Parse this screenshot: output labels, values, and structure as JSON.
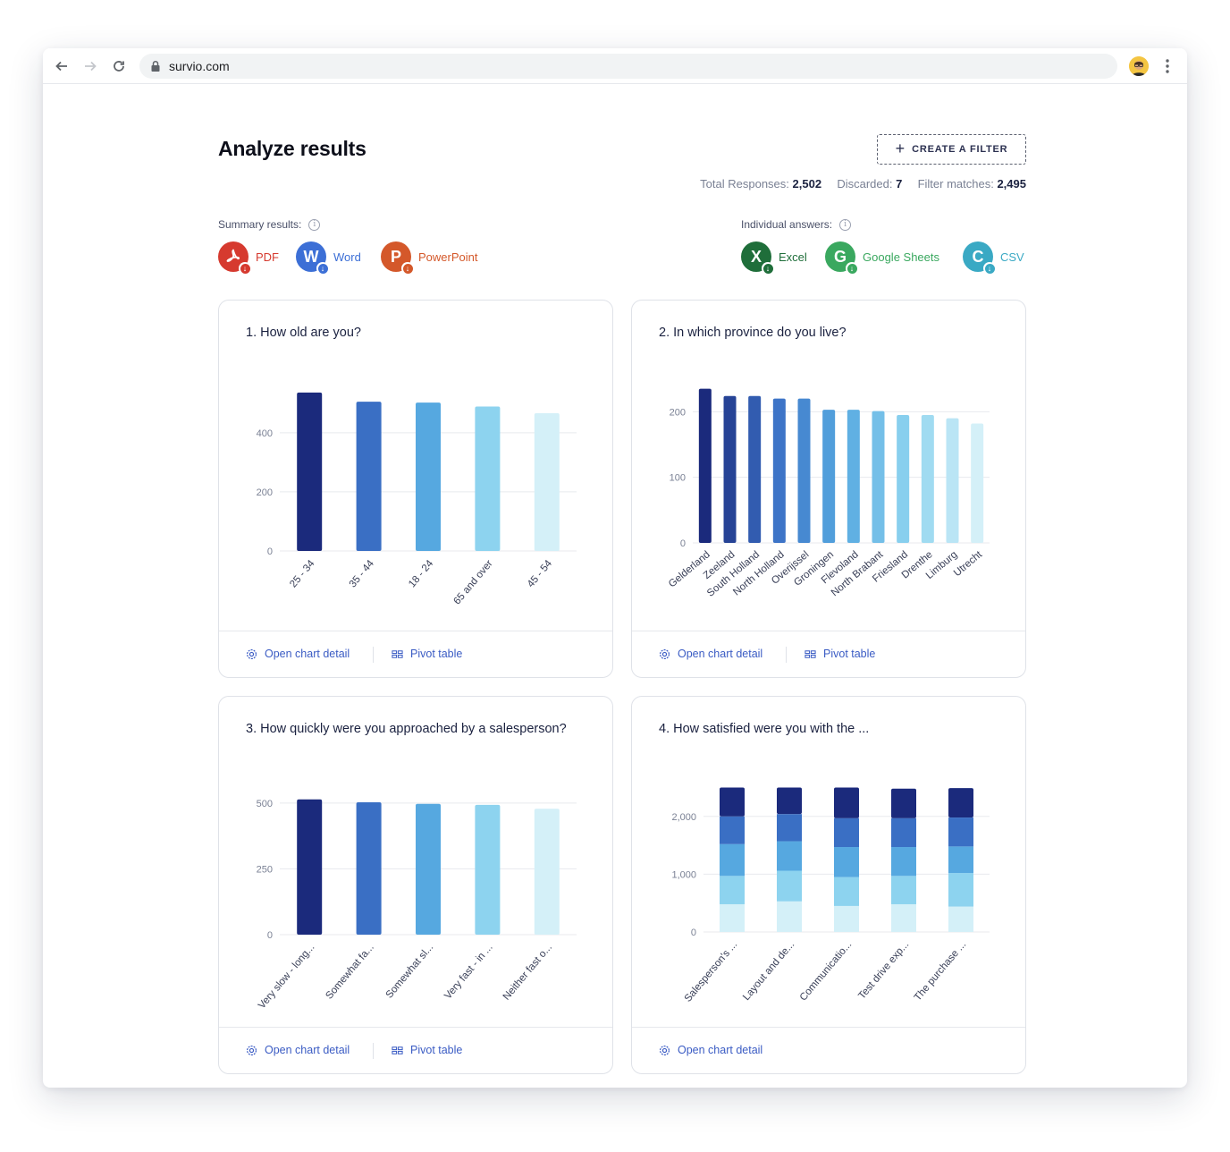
{
  "browser": {
    "url": "survio.com"
  },
  "page": {
    "title": "Analyze results",
    "filter_button": "CREATE A FILTER",
    "stats": {
      "total_label": "Total Responses:",
      "total_value": "2,502",
      "discarded_label": "Discarded:",
      "discarded_value": "7",
      "matches_label": "Filter matches:",
      "matches_value": "2,495"
    },
    "summary": {
      "label": "Summary results:",
      "items": [
        {
          "label": "PDF",
          "color": "#d63a2f",
          "glyph": "pdf-icon"
        },
        {
          "label": "Word",
          "color": "#3c6fd6",
          "glyph": "W"
        },
        {
          "label": "PowerPoint",
          "color": "#d4582a",
          "glyph": "P"
        }
      ]
    },
    "individual": {
      "label": "Individual answers:",
      "items": [
        {
          "label": "Excel",
          "color": "#1f6e3a",
          "glyph": "X"
        },
        {
          "label": "Google Sheets",
          "color": "#3aa85f",
          "glyph": "G"
        },
        {
          "label": "CSV",
          "color": "#3aa9c4",
          "glyph": "C"
        }
      ]
    },
    "footer": {
      "open_chart_detail": "Open chart detail",
      "pivot_table": "Pivot table"
    }
  },
  "palette": [
    "#1b2a7c",
    "#3a6fc4",
    "#56a8e0",
    "#8dd3ef",
    "#d4f0f8"
  ],
  "chart_data": [
    {
      "type": "bar",
      "title": "1. How old are you?",
      "categories": [
        "25 - 34",
        "35 - 44",
        "18 - 24",
        "65 and over",
        "45 - 54"
      ],
      "values": [
        536,
        505,
        502,
        489,
        466
      ],
      "yticks": [
        0,
        200,
        400
      ],
      "ylim": [
        0,
        560
      ],
      "grid": true,
      "xlabel": "",
      "ylabel": ""
    },
    {
      "type": "bar",
      "title": "2. In which province do you live?",
      "categories": [
        "Gelderland",
        "Zeeland",
        "South Holland",
        "North Holland",
        "Overijssel",
        "Groningen",
        "Flevoland",
        "North Brabant",
        "Friesland",
        "Drenthe",
        "Limburg",
        "Utrecht"
      ],
      "values": [
        235,
        224,
        224,
        220,
        220,
        203,
        203,
        201,
        195,
        195,
        190,
        182
      ],
      "yticks": [
        0,
        100,
        200
      ],
      "ylim": [
        0,
        240
      ],
      "grid": true,
      "xlabel": "",
      "ylabel": ""
    },
    {
      "type": "bar",
      "title": "3. How quickly were you approached by a salesperson?",
      "categories": [
        "Very slow - long...",
        "Somewhat fa...",
        "Somewhat sl...",
        "Very fast - in ...",
        "Neither fast o..."
      ],
      "values": [
        514,
        503,
        497,
        493,
        478
      ],
      "yticks": [
        0,
        250,
        500
      ],
      "ylim": [
        0,
        530
      ],
      "grid": true,
      "xlabel": "",
      "ylabel": ""
    },
    {
      "type": "bar",
      "title": "4. How satisfied were you with the ...",
      "stacked": true,
      "categories": [
        "Salesperson's ...",
        "Layout and de...",
        "Communicatio...",
        "Test drive exp...",
        "The purchase ..."
      ],
      "series": [
        {
          "values": [
            480,
            530,
            450,
            480,
            440
          ]
        },
        {
          "values": [
            490,
            530,
            500,
            490,
            580
          ]
        },
        {
          "values": [
            550,
            510,
            520,
            500,
            460
          ]
        },
        {
          "values": [
            480,
            470,
            500,
            500,
            500
          ]
        },
        {
          "values": [
            500,
            460,
            530,
            510,
            510
          ]
        }
      ],
      "yticks": [
        0,
        1000,
        2000
      ],
      "ytick_labels": [
        "0",
        "1,000",
        "2,000"
      ],
      "ylim": [
        0,
        2600
      ],
      "grid": true,
      "xlabel": "",
      "ylabel": ""
    }
  ]
}
